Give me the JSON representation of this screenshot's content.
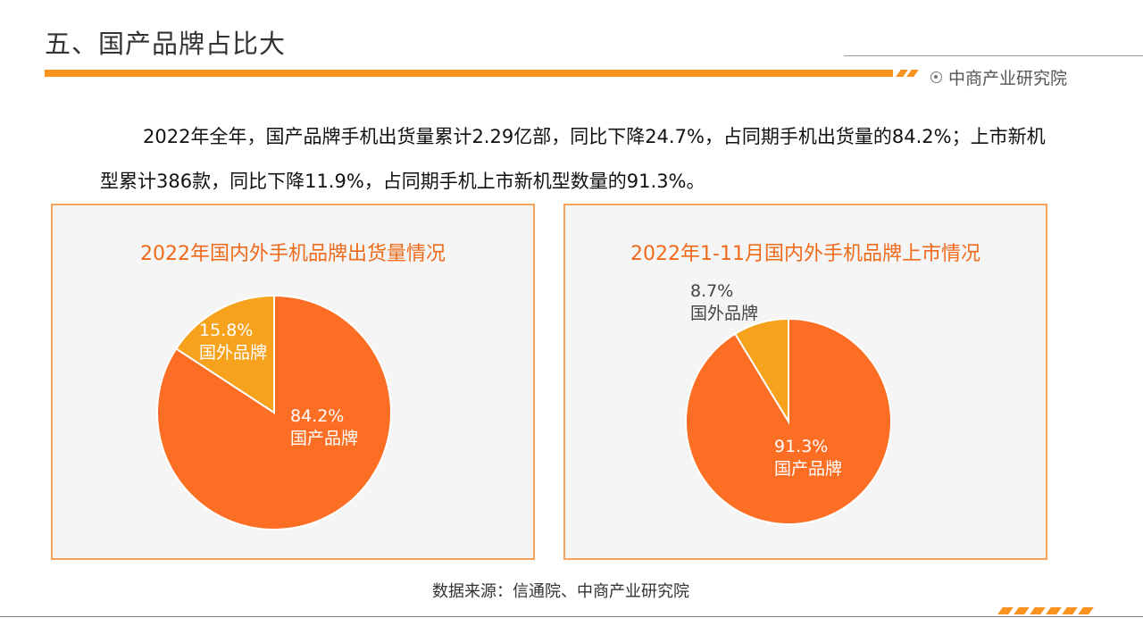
{
  "header": {
    "title": "五、国产品牌占比大",
    "brand": "中商产业研究院"
  },
  "summary": {
    "text": "2022年全年，国产品牌手机出货量累计2.29亿部，同比下降24.7%，占同期手机出货量的84.2%；上市新机型累计386款，同比下降11.9%，占同期手机上市新机型数量的91.3%。"
  },
  "colors": {
    "domestic": "#fb6e24",
    "foreign": "#f7a21d",
    "accent": "#f7931e"
  },
  "chart_data": [
    {
      "type": "pie",
      "title": "2022年国内外手机品牌出货量情况",
      "slices": [
        {
          "name": "国产品牌",
          "value": 84.2,
          "label": "84.2%",
          "color": "#fb6e24"
        },
        {
          "name": "国外品牌",
          "value": 15.8,
          "label": "15.8%",
          "color": "#f7a21d"
        }
      ]
    },
    {
      "type": "pie",
      "title": "2022年1-11月国内外手机品牌上市情况",
      "slices": [
        {
          "name": "国产品牌",
          "value": 91.3,
          "label": "91.3%",
          "color": "#fb6e24"
        },
        {
          "name": "国外品牌",
          "value": 8.7,
          "label": "8.7%",
          "color": "#f7a21d"
        }
      ]
    }
  ],
  "footer": {
    "source": "数据来源：信通院、中商产业研究院"
  }
}
